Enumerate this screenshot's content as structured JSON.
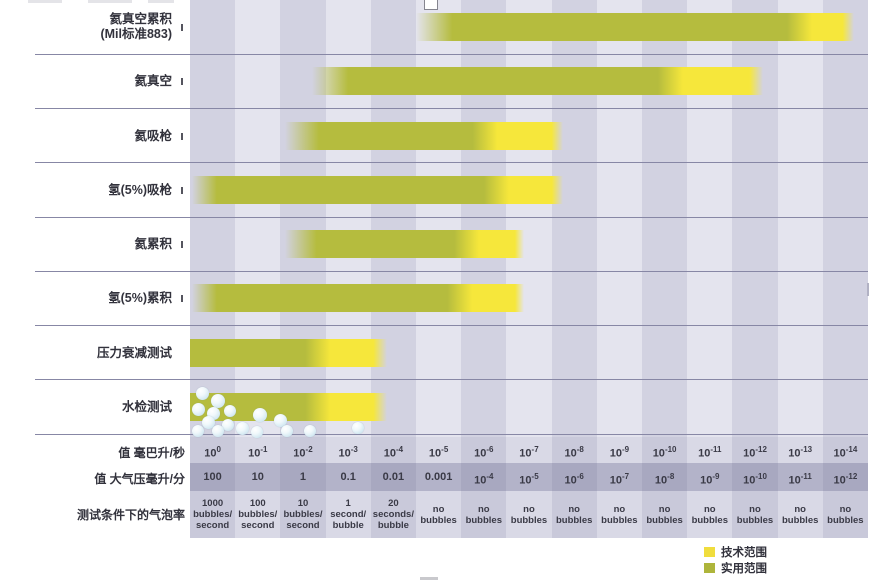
{
  "rows": [
    {
      "label": "氦真空累积",
      "label2": "(Mil标准883)",
      "tick": true,
      "bar": {
        "start": 5.0,
        "yellow": 13.55,
        "end": 14.68,
        "fadeIn": 0.8,
        "fadeOut": 0.25
      }
    },
    {
      "label": "氦真空",
      "label2": "",
      "tick": true,
      "bar": {
        "start": 2.7,
        "yellow": 10.7,
        "end": 12.68,
        "fadeIn": 0.8,
        "fadeOut": 0.3
      }
    },
    {
      "label": "氦吸枪",
      "label2": "",
      "tick": true,
      "bar": {
        "start": 2.1,
        "yellow": 6.6,
        "end": 8.25,
        "fadeIn": 0.75,
        "fadeOut": 0.25
      }
    },
    {
      "label": "氢(5%)吸枪",
      "label2": "",
      "tick": true,
      "bar": {
        "start": 0.05,
        "yellow": 6.85,
        "end": 8.25,
        "fadeIn": 0.55,
        "fadeOut": 0.25
      }
    },
    {
      "label": "氦累积",
      "label2": "",
      "tick": true,
      "bar": {
        "start": 2.1,
        "yellow": 6.2,
        "end": 7.4,
        "fadeIn": 0.7,
        "fadeOut": 0.2
      }
    },
    {
      "label": "氢(5%)累积",
      "label2": "",
      "tick": true,
      "bar": {
        "start": 0.05,
        "yellow": 6.05,
        "end": 7.4,
        "fadeIn": 0.55,
        "fadeOut": 0.2
      }
    },
    {
      "label": "压力衰减测试",
      "label2": "",
      "tick": false,
      "bar": {
        "start": 0,
        "yellow": 2.9,
        "end": 4.35,
        "fadeIn": 0,
        "fadeOut": 0.3
      }
    },
    {
      "label": "水检测试",
      "label2": "",
      "tick": false,
      "bar": {
        "start": 0,
        "yellow": 2.9,
        "end": 4.35,
        "fadeIn": 0,
        "fadeOut": 0.3
      }
    }
  ],
  "axis": {
    "rows": [
      {
        "label": "值 毫巴升/秒",
        "cells": [
          "10^0",
          "10^-1",
          "10^-2",
          "10^-3",
          "10^-4",
          "10^-5",
          "10^-6",
          "10^-7",
          "10^-8",
          "10^-9",
          "10^-10",
          "10^-11",
          "10^-12",
          "10^-13",
          "10^-14"
        ]
      },
      {
        "label": "值 大气压毫升/分",
        "cells": [
          "100",
          "10",
          "1",
          "0.1",
          "0.01",
          "0.001",
          "10^-4",
          "10^-5",
          "10^-6",
          "10^-7",
          "10^-8",
          "10^-9",
          "10^-10",
          "10^-11",
          "10^-12"
        ]
      },
      {
        "label": "测试条件下的气泡率",
        "cells": [
          "1000\nbubbles/\nsecond",
          "100\nbubbles/\nsecond",
          "10\nbubbles/\nsecond",
          "1\nsecond/\nbubble",
          "20\nseconds/\nbubble",
          "no\nbubbles",
          "no\nbubbles",
          "no\nbubbles",
          "no\nbubbles",
          "no\nbubbles",
          "no\nbubbles",
          "no\nbubbles",
          "no\nbubbles",
          "no\nbubbles",
          "no\nbubbles"
        ]
      }
    ]
  },
  "legend": {
    "items": [
      {
        "label": "技术范围",
        "color": "#f0dd3d"
      },
      {
        "label": "实用范围",
        "color": "#aeb53b"
      }
    ]
  },
  "colors": {
    "stripe_dark": "#d2d2e1",
    "stripe_light": "#e4e4ee",
    "band": "rgba(82,82,124,0.28)",
    "axis_tint": "rgba(82,82,124,0.07)",
    "separator": "#8787a5",
    "practical": "#b5bc3e",
    "technical": "#f6e73b",
    "text": "#32323c"
  },
  "bubbles": [
    [
      202,
      393,
      13
    ],
    [
      218,
      401,
      14
    ],
    [
      198,
      409,
      13
    ],
    [
      213,
      413,
      13
    ],
    [
      230,
      411,
      12
    ],
    [
      208,
      422,
      13
    ],
    [
      228,
      425,
      12
    ],
    [
      198,
      431,
      12
    ],
    [
      218,
      431,
      12
    ],
    [
      242,
      428,
      13
    ],
    [
      260,
      415,
      14
    ],
    [
      257,
      432,
      12
    ],
    [
      280,
      420,
      13
    ],
    [
      287,
      431,
      12
    ],
    [
      310,
      431,
      12
    ],
    [
      358,
      428,
      12
    ]
  ],
  "chart_data": {
    "type": "bar",
    "orientation": "horizontal-range",
    "title": "",
    "categories": [
      "氦真空累积 (Mil标准883)",
      "氦真空",
      "氦吸枪",
      "氢(5%)吸枪",
      "氦累积",
      "氢(5%)累积",
      "压力衰减测试",
      "水检测试"
    ],
    "x_axis": {
      "label": "值 毫巴升/秒",
      "scale": "log10",
      "ticks": [
        "10^0",
        "10^-1",
        "10^-2",
        "10^-3",
        "10^-4",
        "10^-5",
        "10^-6",
        "10^-7",
        "10^-8",
        "10^-9",
        "10^-10",
        "10^-11",
        "10^-12",
        "10^-13",
        "10^-14"
      ]
    },
    "secondary_axis_atm_ml_min": {
      "label": "值 大气压毫升/分",
      "ticks": [
        "100",
        "10",
        "1",
        "0.1",
        "0.01",
        "0.001",
        "10^-4",
        "10^-5",
        "10^-6",
        "10^-7",
        "10^-8",
        "10^-9",
        "10^-10",
        "10^-11",
        "10^-12"
      ]
    },
    "bubble_rate_axis": {
      "label": "测试条件下的气泡率",
      "ticks": [
        "1000 bubbles/second",
        "100 bubbles/second",
        "10 bubbles/second",
        "1 second/bubble",
        "20 seconds/bubble",
        "no bubbles",
        "no bubbles",
        "no bubbles",
        "no bubbles",
        "no bubbles",
        "no bubbles",
        "no bubbles",
        "no bubbles",
        "no bubbles",
        "no bubbles"
      ]
    },
    "series": [
      {
        "name": "实用范围",
        "color": "#b5bc3e",
        "ranges_mbar_l_per_s": [
          [
            "1e-5",
            "1e-13"
          ],
          [
            "1e-3",
            "1e-10"
          ],
          [
            "1e-2",
            "1e-6"
          ],
          [
            "1e0",
            "1e-6"
          ],
          [
            "1e-2",
            "1e-6"
          ],
          [
            "1e0",
            "1e-6"
          ],
          [
            "1e0",
            "1e-3"
          ],
          [
            "1e0",
            "1e-3"
          ]
        ]
      },
      {
        "name": "技术范围",
        "color": "#f6e73b",
        "ranges_mbar_l_per_s": [
          [
            "1e-13",
            "1e-14"
          ],
          [
            "1e-10",
            "1e-12"
          ],
          [
            "1e-6",
            "1e-8"
          ],
          [
            "1e-6",
            "1e-8"
          ],
          [
            "1e-6",
            "1e-7"
          ],
          [
            "1e-6",
            "1e-7"
          ],
          [
            "1e-3",
            "1e-4"
          ],
          [
            "1e-3",
            "1e-4"
          ]
        ]
      }
    ],
    "legend_position": "bottom-right",
    "grid": "alternating column stripes"
  }
}
